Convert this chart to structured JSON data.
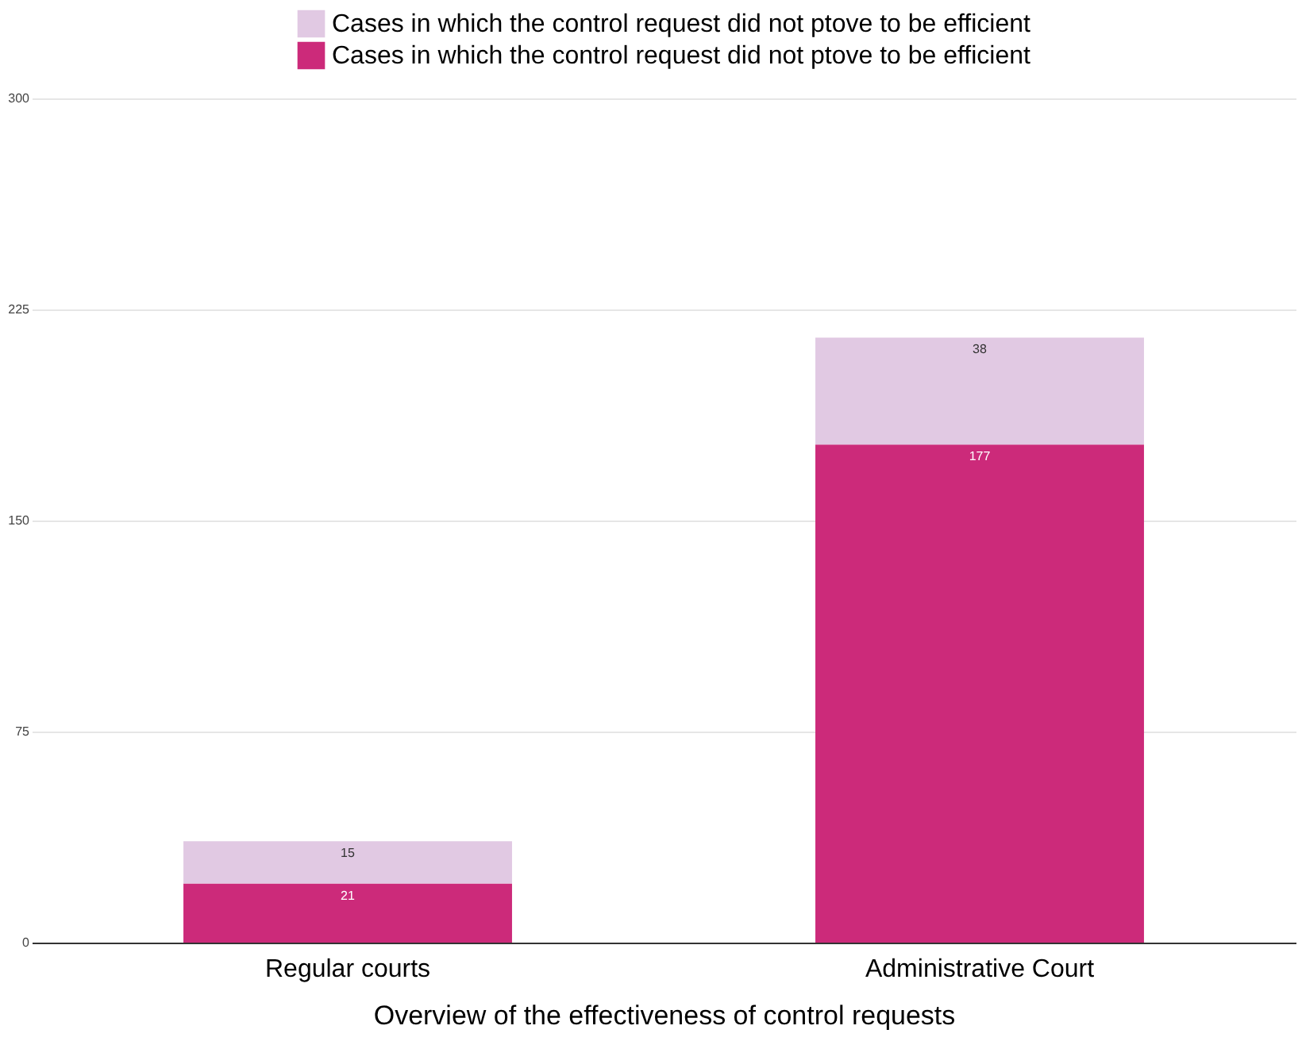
{
  "chart_data": {
    "type": "bar",
    "xlabel": "Overview of the effectiveness of control requests",
    "categories": [
      "Regular courts",
      "Administrative Court"
    ],
    "series": [
      {
        "name": "Cases in which the control request did not ptove to be efficient",
        "color": "#cc2a7a",
        "values": [
          21,
          177
        ]
      },
      {
        "name": "Cases in which the control request did not ptove to be efficient",
        "color": "#e1c9e3",
        "values": [
          15,
          38
        ]
      }
    ],
    "stacked": true,
    "ylim": [
      0,
      300
    ],
    "yticks": [
      0,
      75,
      150,
      225,
      300
    ],
    "grid": "y",
    "legend": "top",
    "data_labels": true
  }
}
